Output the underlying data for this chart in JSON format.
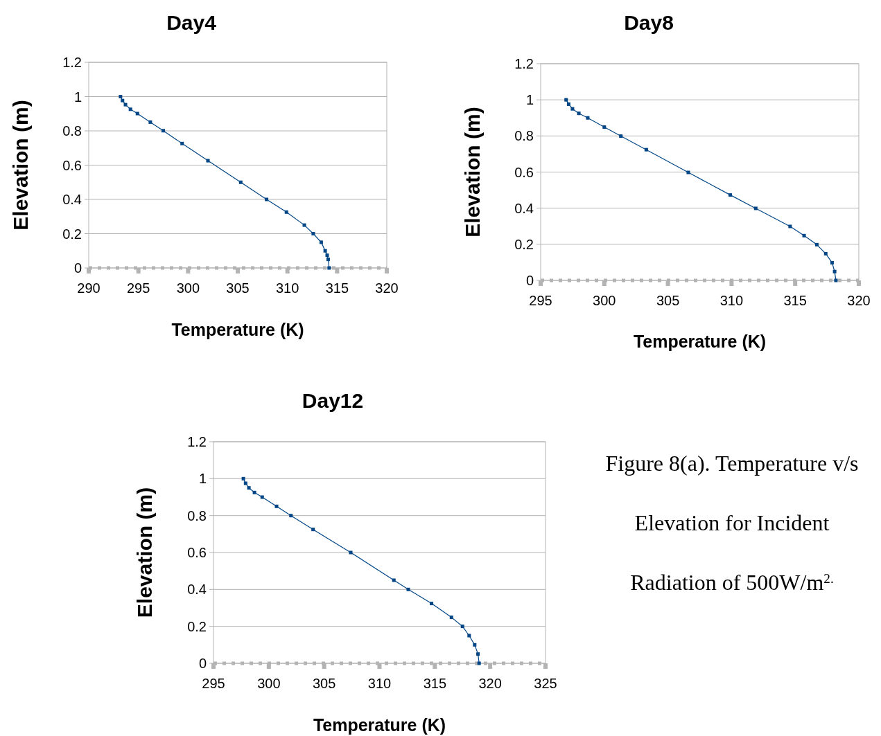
{
  "chart_data": [
    {
      "type": "line",
      "title": "Day4",
      "xlabel": "Temperature (K)",
      "ylabel": "Elevation (m)",
      "xlim": [
        290,
        320
      ],
      "xticks": [
        290,
        295,
        300,
        305,
        310,
        315,
        320
      ],
      "ylim": [
        0,
        1.2
      ],
      "yticks": [
        0,
        0.2,
        0.4,
        0.6,
        0.8,
        1,
        1.2
      ],
      "grid": "y",
      "marker": "square",
      "line_style": "solid",
      "series": [
        {
          "color": "#004586",
          "x": [
            293.2,
            293.4,
            293.7,
            294.2,
            294.9,
            296.2,
            297.5,
            299.4,
            302.0,
            305.3,
            307.9,
            309.9,
            311.7,
            312.6,
            313.4,
            313.8,
            314.0,
            314.1,
            314.2
          ],
          "values": [
            1.0,
            0.977,
            0.953,
            0.926,
            0.901,
            0.851,
            0.801,
            0.726,
            0.626,
            0.5,
            0.4,
            0.326,
            0.25,
            0.2,
            0.15,
            0.1,
            0.074,
            0.05,
            0
          ]
        }
      ]
    },
    {
      "type": "line",
      "title": "Day8",
      "xlabel": "Temperature (K)",
      "ylabel": "Elevation (m)",
      "xlim": [
        295,
        320
      ],
      "xticks": [
        295,
        300,
        305,
        310,
        315,
        320
      ],
      "ylim": [
        0,
        1.2
      ],
      "yticks": [
        0,
        0.2,
        0.4,
        0.6,
        0.8,
        1,
        1.2
      ],
      "grid": "y",
      "marker": "square",
      "line_style": "solid",
      "series": [
        {
          "color": "#004586",
          "x": [
            297.0,
            297.2,
            297.5,
            298.0,
            298.7,
            300.0,
            301.3,
            303.3,
            306.6,
            309.9,
            311.9,
            314.6,
            315.7,
            316.7,
            317.4,
            317.9,
            318.1,
            318.2
          ],
          "values": [
            1.0,
            0.976,
            0.95,
            0.925,
            0.9,
            0.849,
            0.799,
            0.724,
            0.598,
            0.473,
            0.399,
            0.299,
            0.248,
            0.198,
            0.148,
            0.098,
            0.049,
            0
          ]
        }
      ]
    },
    {
      "type": "line",
      "title": "Day12",
      "xlabel": "Temperature (K)",
      "ylabel": "Elevation (m)",
      "xlim": [
        295,
        325
      ],
      "xticks": [
        295,
        300,
        305,
        310,
        315,
        320,
        325
      ],
      "ylim": [
        0,
        1.2
      ],
      "yticks": [
        0,
        0.2,
        0.4,
        0.6,
        0.8,
        1,
        1.2
      ],
      "grid": "y",
      "marker": "square",
      "line_style": "solid",
      "annotations": [
        "Figure 8(a). Temperature v/s Elevation for Incident Radiation of 500W/m$^{2.}$"
      ],
      "series": [
        {
          "color": "#004586",
          "x": [
            297.7,
            297.9,
            298.2,
            298.7,
            299.4,
            300.7,
            302.0,
            304.0,
            307.4,
            311.3,
            312.6,
            314.7,
            316.5,
            317.5,
            318.1,
            318.6,
            318.9,
            319.0
          ],
          "values": [
            1,
            0.975,
            0.95,
            0.925,
            0.9,
            0.85,
            0.8,
            0.725,
            0.6,
            0.45,
            0.4,
            0.324,
            0.249,
            0.2,
            0.15,
            0.1,
            0.05,
            0
          ]
        }
      ]
    }
  ]
}
